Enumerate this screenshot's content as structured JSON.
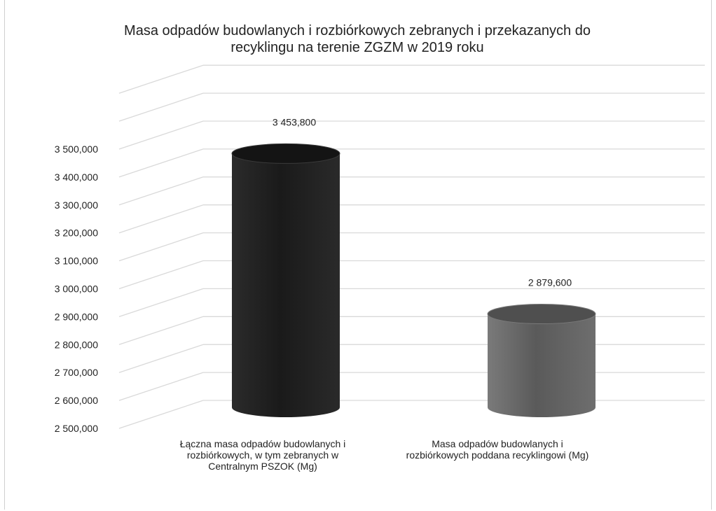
{
  "chart_data": {
    "type": "bar",
    "title": "Masa odpadów budowlanych i rozbiórkowych zebranych i przekazanych do recyklingu na terenie ZGZM w 2019 roku",
    "title_lines": [
      "Masa odpadów budowlanych i rozbiórkowych zebranych i przekazanych do",
      "recyklingu na terenie ZGZM w 2019 roku"
    ],
    "categories": [
      "Łączna masa odpadów budowlanych i rozbiórkowych, w tym zebranych w Centralnym PSZOK (Mg)",
      "Masa odpadów budowlanych i rozbiórkowych poddana recyklingowi (Mg)"
    ],
    "category_lines": [
      [
        "Łączna masa odpadów budowlanych i",
        "rozbiórkowych, w tym zebranych w",
        "Centralnym PSZOK (Mg)"
      ],
      [
        "Masa odpadów budowlanych i",
        "rozbiórkowych poddana recyklingowi (Mg)"
      ]
    ],
    "values": [
      3453.8,
      2879.6
    ],
    "value_labels": [
      "3 453,800",
      "2 879,600"
    ],
    "ylim": [
      2500,
      3500
    ],
    "yticks": [
      2500,
      2600,
      2700,
      2800,
      2900,
      3000,
      3100,
      3200,
      3300,
      3400,
      3500
    ],
    "ytick_labels": [
      "2 500,000",
      "2 600,000",
      "2 700,000",
      "2 800,000",
      "2 900,000",
      "3 000,000",
      "3 100,000",
      "3 200,000",
      "3 300,000",
      "3 400,000",
      "3 500,000"
    ],
    "bar_shape": "cylinder",
    "grid": true,
    "legend": "none",
    "colors": [
      "#262626",
      "#6b6b6b"
    ]
  }
}
